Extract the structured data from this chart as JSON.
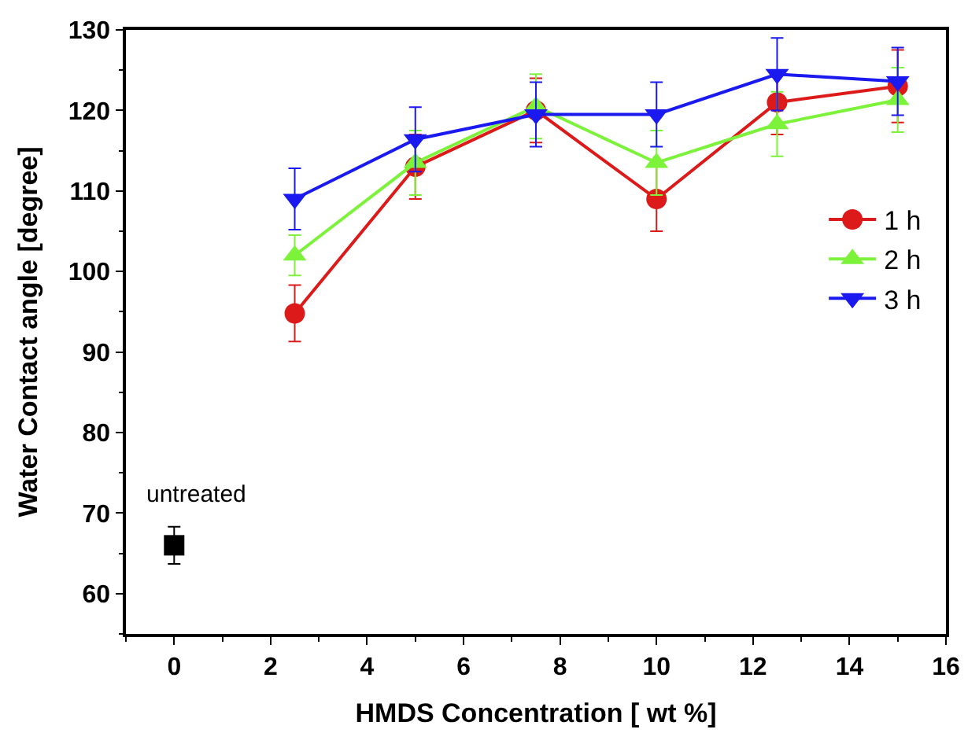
{
  "chart_data": {
    "type": "line",
    "xlabel": "HMDS Concentration [ wt %]",
    "ylabel": "Water Contact angle [degree]",
    "xlim": [
      -1,
      16
    ],
    "xticks": [
      0,
      2,
      4,
      6,
      8,
      10,
      12,
      14,
      16
    ],
    "ylim": [
      55,
      130
    ],
    "yticks": [
      60,
      70,
      80,
      90,
      100,
      110,
      120,
      130
    ],
    "legend": "right",
    "annotations": [
      {
        "text": "untreated",
        "x": 0,
        "y": 66
      }
    ],
    "series": [
      {
        "type": "scatter",
        "color": "#000000",
        "marker": "square",
        "x": [
          0
        ],
        "values": [
          66
        ],
        "errors": [
          2.3
        ]
      },
      {
        "name": "1 h",
        "color": "#dd1a1a",
        "marker": "circle",
        "x": [
          2.5,
          5,
          7.5,
          10,
          12.5,
          15
        ],
        "values": [
          94.8,
          113,
          120,
          109,
          121,
          123
        ],
        "errors": [
          3.5,
          4,
          4,
          4,
          4,
          4.5
        ]
      },
      {
        "name": "2 h",
        "color": "#7cf23a",
        "marker": "triangle",
        "x": [
          2.5,
          5,
          7.5,
          10,
          12.5,
          15
        ],
        "values": [
          102,
          113.5,
          120.5,
          113.5,
          118.3,
          121.3
        ],
        "errors": [
          2.5,
          4,
          4,
          4,
          4,
          4
        ]
      },
      {
        "name": "3 h",
        "color": "#1a1af0",
        "marker": "triangle-down",
        "x": [
          2.5,
          5,
          7.5,
          10,
          12.5,
          15
        ],
        "values": [
          109,
          116.4,
          119.5,
          119.5,
          124.5,
          123.6
        ],
        "errors": [
          3.8,
          4,
          4,
          4,
          4.5,
          4.2
        ]
      }
    ]
  }
}
